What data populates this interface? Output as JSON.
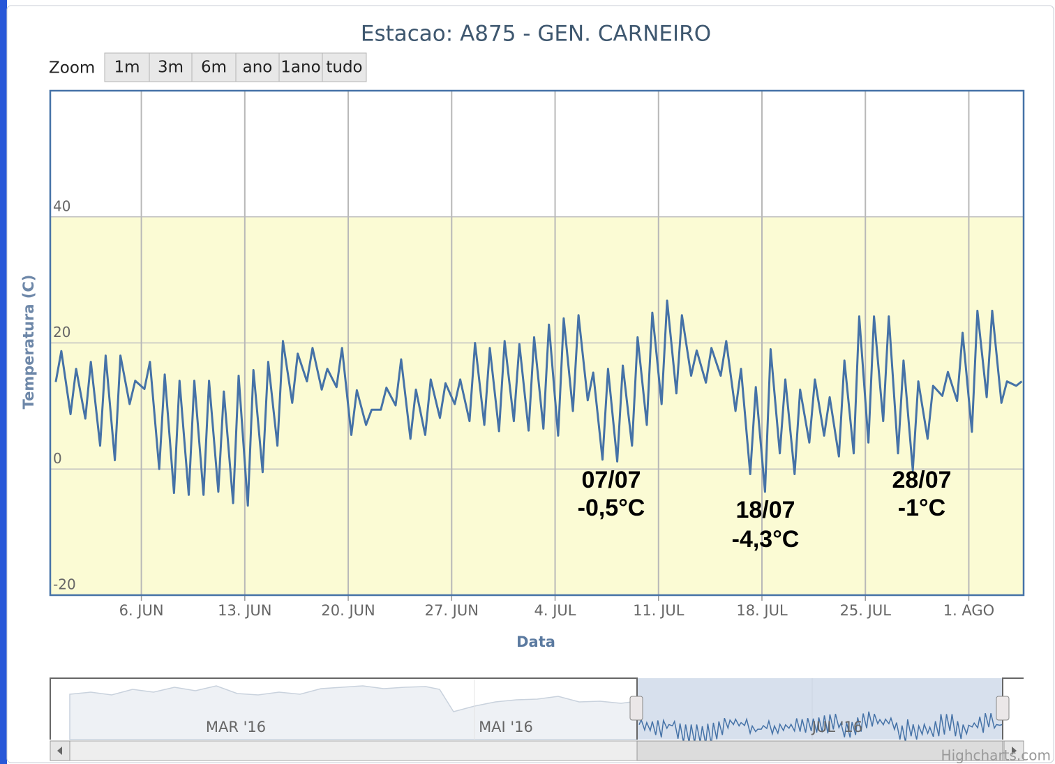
{
  "title": "Estacao: A875 - GEN. CARNEIRO",
  "zoom_label": "Zoom",
  "zoom_buttons": [
    "1m",
    "3m",
    "6m",
    "ano",
    "1ano",
    "tudo"
  ],
  "credits": "Highcharts.com",
  "navigator": {
    "labels": [
      "MAR '16",
      "MAI '16",
      "JUL '16"
    ]
  },
  "chart_data": {
    "type": "line",
    "x_title": "Data",
    "y_title": "Temperatura (C)",
    "grid": true,
    "xlim": [
      "2016-05-30T20:00",
      "2016-08-04T17:00"
    ],
    "xticks": [
      {
        "value": "2016-06-06T00:00",
        "label": "6. JUN"
      },
      {
        "value": "2016-06-13T00:00",
        "label": "13. JUN"
      },
      {
        "value": "2016-06-20T00:00",
        "label": "20. JUN"
      },
      {
        "value": "2016-06-27T00:00",
        "label": "27. JUN"
      },
      {
        "value": "2016-07-04T00:00",
        "label": "4. JUL"
      },
      {
        "value": "2016-07-11T00:00",
        "label": "11. JUL"
      },
      {
        "value": "2016-07-18T00:00",
        "label": "18. JUL"
      },
      {
        "value": "2016-07-25T00:00",
        "label": "25. JUL"
      },
      {
        "value": "2016-08-01T00:00",
        "label": "1. AGO"
      }
    ],
    "ylim": [
      -20,
      60
    ],
    "yticks": [
      -20,
      0,
      20,
      40
    ],
    "plot_band": {
      "from": -20,
      "to": 40,
      "color": "#fbfbd4"
    },
    "annotations": [
      {
        "lines": [
          "07/07",
          "-0,5°C"
        ]
      },
      {
        "lines": [
          "18/07",
          "-4,3°C"
        ]
      },
      {
        "lines": [
          "28/07",
          "-1°C"
        ]
      }
    ],
    "x": [
      "2016-05-31T05:00",
      "2016-05-31T14:00",
      "2016-06-01T05:00",
      "2016-06-01T14:00",
      "2016-06-02T05:00",
      "2016-06-02T14:00",
      "2016-06-03T05:00",
      "2016-06-03T14:00",
      "2016-06-04T05:00",
      "2016-06-04T14:00",
      "2016-06-05T05:00",
      "2016-06-05T14:00",
      "2016-06-06T05:00",
      "2016-06-06T14:00",
      "2016-06-07T05:00",
      "2016-06-07T14:00",
      "2016-06-08T05:00",
      "2016-06-08T14:00",
      "2016-06-09T05:00",
      "2016-06-09T14:00",
      "2016-06-10T05:00",
      "2016-06-10T14:00",
      "2016-06-11T05:00",
      "2016-06-11T14:00",
      "2016-06-12T05:00",
      "2016-06-12T14:00",
      "2016-06-13T05:00",
      "2016-06-13T14:00",
      "2016-06-14T05:00",
      "2016-06-14T14:00",
      "2016-06-15T05:00",
      "2016-06-15T14:00",
      "2016-06-16T05:00",
      "2016-06-16T14:00",
      "2016-06-17T05:00",
      "2016-06-17T14:00",
      "2016-06-18T05:00",
      "2016-06-18T14:00",
      "2016-06-19T05:00",
      "2016-06-19T14:00",
      "2016-06-20T05:00",
      "2016-06-20T14:00",
      "2016-06-21T05:00",
      "2016-06-21T14:00",
      "2016-06-22T05:00",
      "2016-06-22T14:00",
      "2016-06-23T05:00",
      "2016-06-23T14:00",
      "2016-06-24T05:00",
      "2016-06-24T14:00",
      "2016-06-25T05:00",
      "2016-06-25T14:00",
      "2016-06-26T05:00",
      "2016-06-26T14:00",
      "2016-06-27T05:00",
      "2016-06-27T14:00",
      "2016-06-28T05:00",
      "2016-06-28T14:00",
      "2016-06-29T05:00",
      "2016-06-29T14:00",
      "2016-06-30T05:00",
      "2016-06-30T14:00",
      "2016-07-01T05:00",
      "2016-07-01T14:00",
      "2016-07-02T05:00",
      "2016-07-02T14:00",
      "2016-07-03T05:00",
      "2016-07-03T14:00",
      "2016-07-04T05:00",
      "2016-07-04T14:00",
      "2016-07-05T05:00",
      "2016-07-05T14:00",
      "2016-07-06T05:00",
      "2016-07-06T14:00",
      "2016-07-07T05:00",
      "2016-07-07T14:00",
      "2016-07-08T05:00",
      "2016-07-08T14:00",
      "2016-07-09T05:00",
      "2016-07-09T14:00",
      "2016-07-10T05:00",
      "2016-07-10T14:00",
      "2016-07-11T05:00",
      "2016-07-11T14:00",
      "2016-07-12T05:00",
      "2016-07-12T14:00",
      "2016-07-13T05:00",
      "2016-07-13T14:00",
      "2016-07-14T05:00",
      "2016-07-14T14:00",
      "2016-07-15T05:00",
      "2016-07-15T14:00",
      "2016-07-16T05:00",
      "2016-07-16T14:00",
      "2016-07-17T05:00",
      "2016-07-17T14:00",
      "2016-07-18T05:00",
      "2016-07-18T14:00",
      "2016-07-19T05:00",
      "2016-07-19T14:00",
      "2016-07-20T05:00",
      "2016-07-20T14:00",
      "2016-07-21T05:00",
      "2016-07-21T14:00",
      "2016-07-22T05:00",
      "2016-07-22T14:00",
      "2016-07-23T05:00",
      "2016-07-23T14:00",
      "2016-07-24T05:00",
      "2016-07-24T14:00",
      "2016-07-25T05:00",
      "2016-07-25T14:00",
      "2016-07-26T05:00",
      "2016-07-26T14:00",
      "2016-07-27T05:00",
      "2016-07-27T14:00",
      "2016-07-28T05:00",
      "2016-07-28T14:00",
      "2016-07-29T05:00",
      "2016-07-29T14:00",
      "2016-07-30T05:00",
      "2016-07-30T14:00",
      "2016-07-31T05:00",
      "2016-07-31T14:00",
      "2016-08-01T05:00",
      "2016-08-01T14:00",
      "2016-08-02T05:00",
      "2016-08-02T14:00",
      "2016-08-03T05:00",
      "2016-08-03T14:00",
      "2016-08-04T05:00",
      "2016-08-04T14:00"
    ],
    "series": [
      {
        "color": "#4572a7",
        "values": [
          13.8,
          18.7,
          8.7,
          15.9,
          8,
          17,
          3.7,
          18,
          1.4,
          18,
          10.3,
          14,
          12.7,
          17,
          0,
          15,
          -3.8,
          14,
          -4.1,
          14,
          -4.1,
          14,
          -3.6,
          12.3,
          -5.4,
          14.8,
          -5.8,
          15.7,
          -0.5,
          17,
          3.7,
          20.3,
          10.5,
          18.3,
          13.9,
          19.2,
          12.6,
          15.9,
          13,
          19.2,
          5.4,
          12.5,
          7,
          9.4,
          9.4,
          12.9,
          10.1,
          17.4,
          4.8,
          12.6,
          5.4,
          14.2,
          8.1,
          13.6,
          10.3,
          14.2,
          7.6,
          20,
          7,
          19.2,
          6,
          20.3,
          7.6,
          19.8,
          6.1,
          20.9,
          6.4,
          22.9,
          5.3,
          23.9,
          9.2,
          24.4,
          10.9,
          15.3,
          1.5,
          15.9,
          1.2,
          16.4,
          3.7,
          20.9,
          7,
          24.8,
          10.3,
          26.7,
          12,
          24.4,
          14.8,
          18.8,
          13.7,
          19.2,
          14.8,
          20.3,
          9.2,
          15.9,
          -0.8,
          13,
          -3.6,
          19,
          2.5,
          14.2,
          -0.8,
          12.6,
          4.2,
          14.2,
          5.3,
          11.4,
          2,
          17.2,
          2.5,
          24.2,
          4.2,
          24.2,
          7.6,
          24.2,
          2.5,
          17.2,
          -0.2,
          13.9,
          4.8,
          13.2,
          11.6,
          15.4,
          10.8,
          21.6,
          5.9,
          25.1,
          11.4,
          25.1,
          10.5,
          13.9,
          13.2,
          13.9
        ]
      }
    ]
  }
}
